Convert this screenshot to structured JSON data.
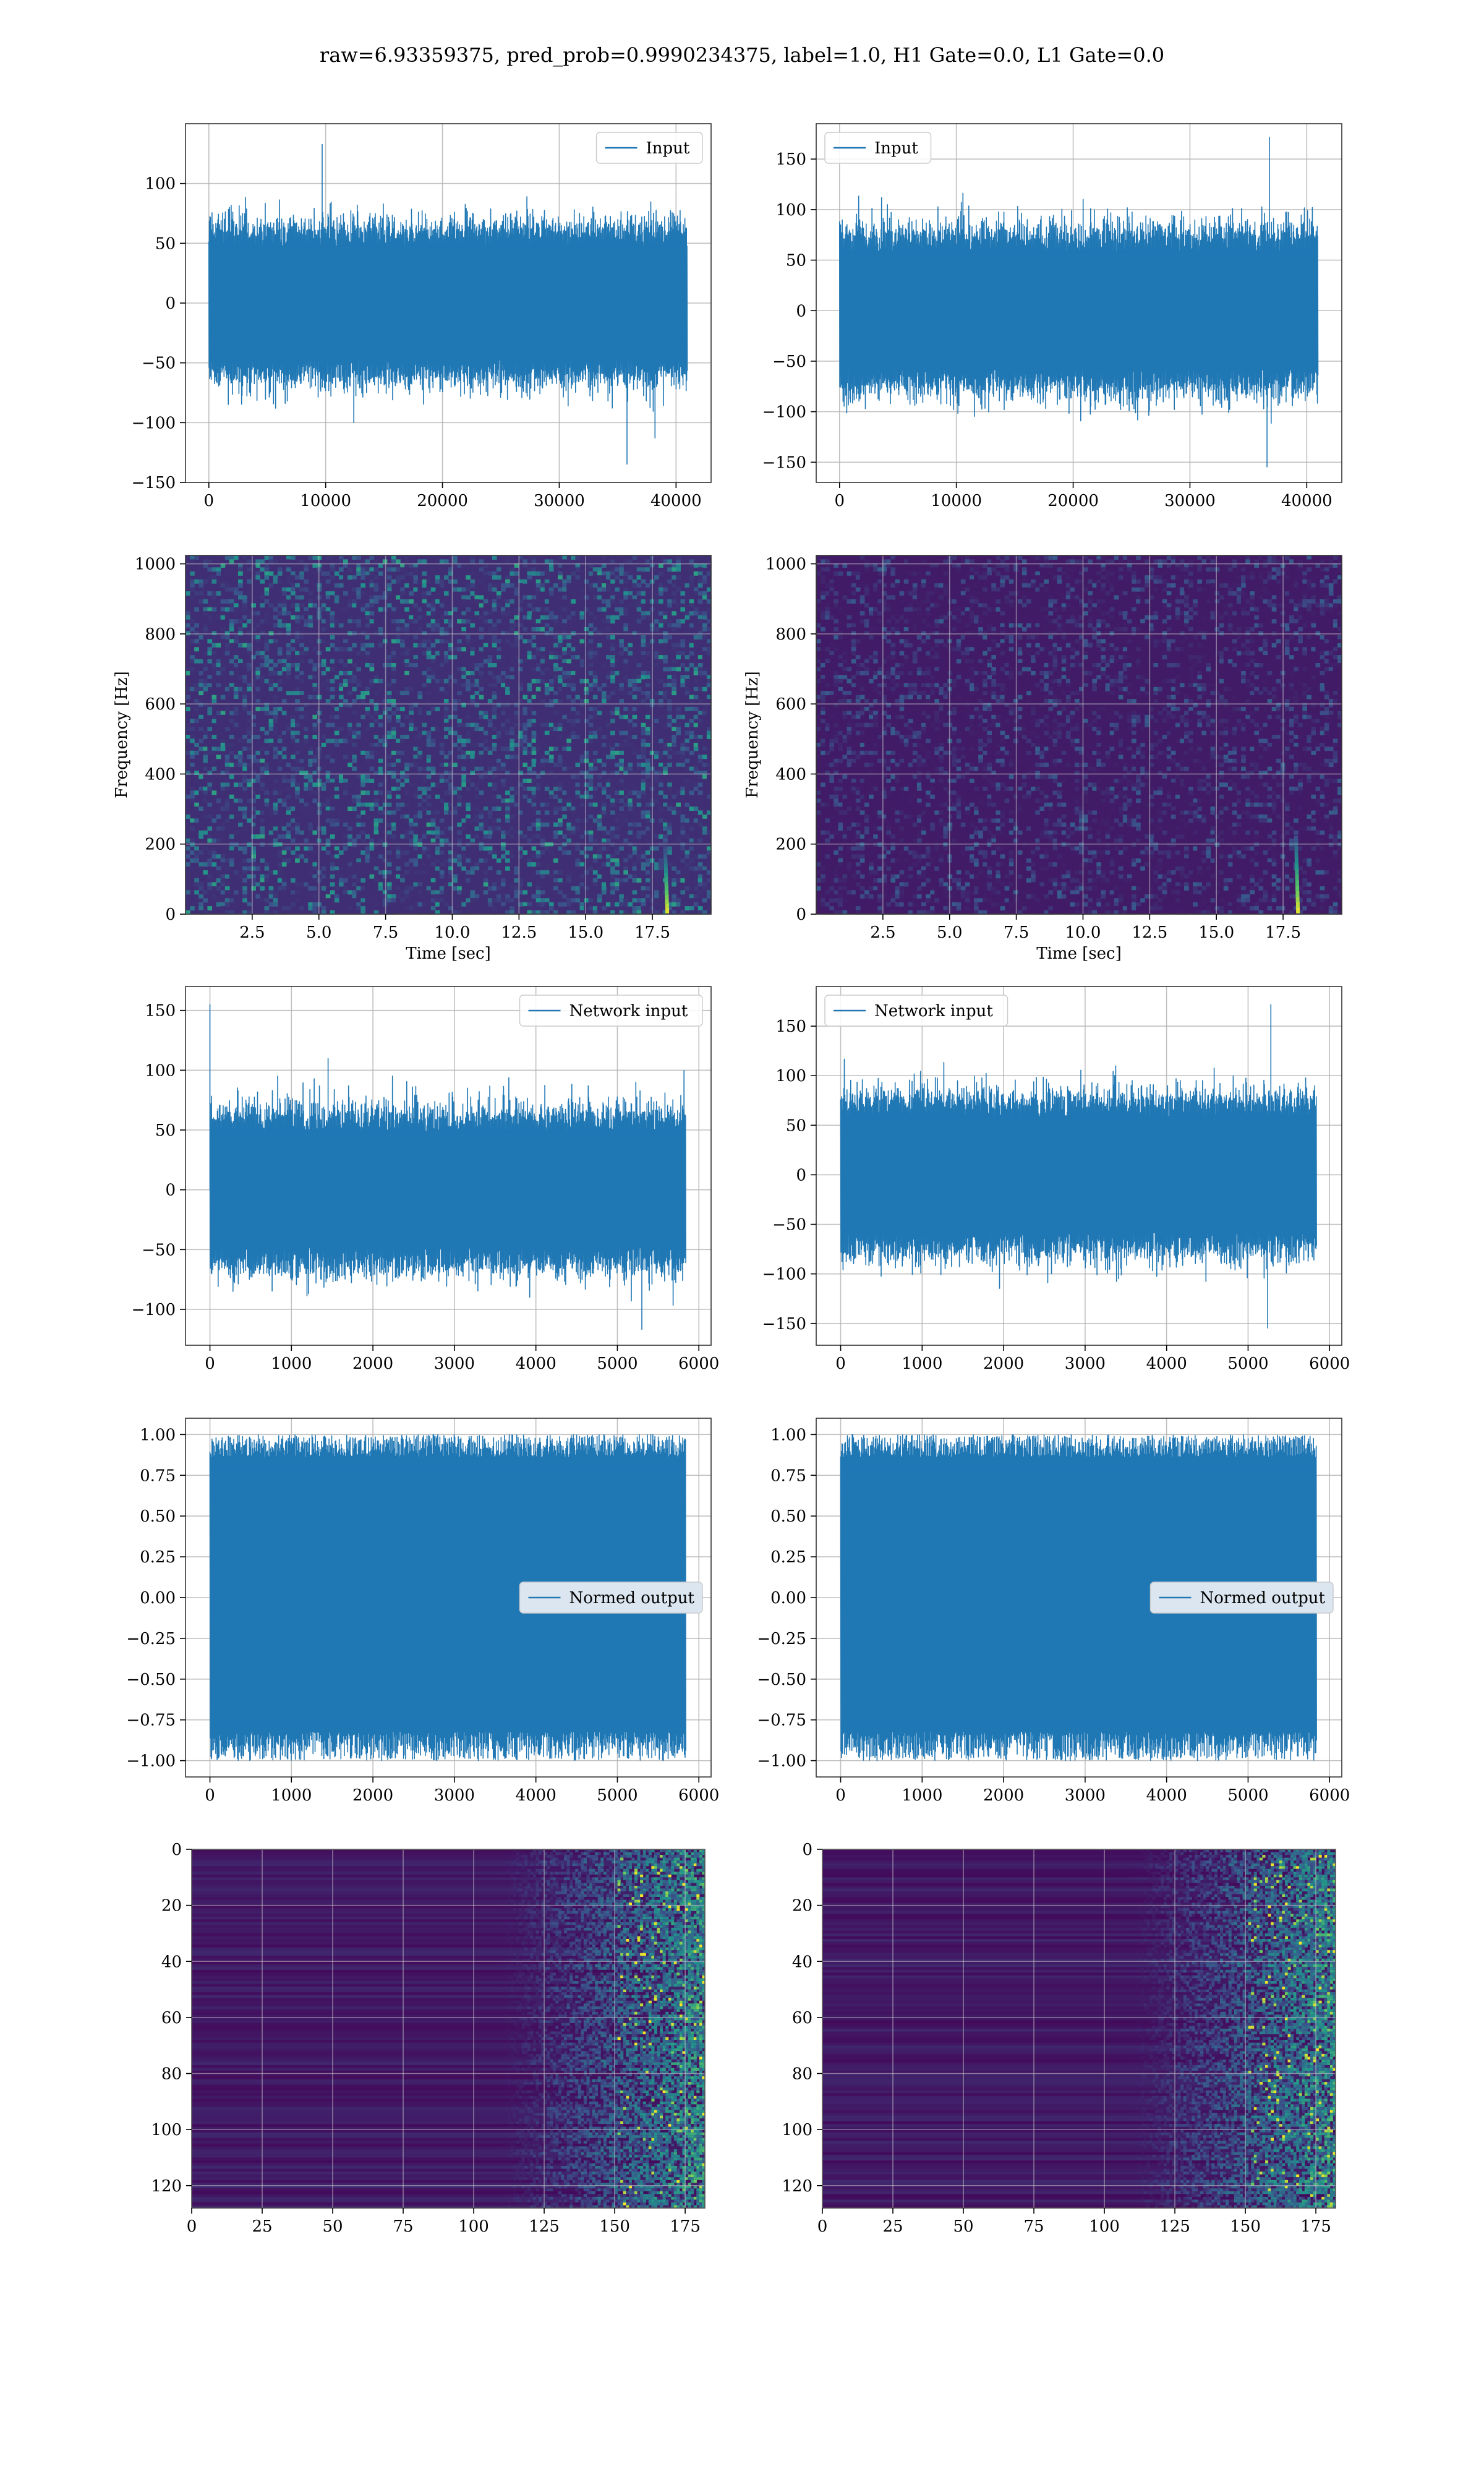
{
  "title": "raw=6.93359375, pred_prob=0.9990234375, label=1.0, H1 Gate=0.0, L1 Gate=0.0",
  "colors": {
    "line": "#1f77b4",
    "grid": "#b0b0b0",
    "heat_low": "#440154",
    "heat_high": "#fde725"
  },
  "chart_data": [
    {
      "type": "line",
      "panel": "row1-left",
      "series": [
        {
          "name": "Input",
          "n_points": 40960,
          "approx_range": [
            -135,
            133
          ],
          "spikes": [
            [
              9700,
              133
            ],
            [
              35800,
              -135
            ],
            [
              38200,
              -113
            ]
          ]
        }
      ],
      "xlim": [
        -2000,
        43000
      ],
      "ylim": [
        -150,
        150
      ],
      "xticks": [
        0,
        10000,
        20000,
        30000,
        40000
      ],
      "yticks": [
        -150,
        -100,
        -50,
        0,
        50,
        100
      ],
      "xlabel": "",
      "ylabel": "",
      "legend": "top-right",
      "grid": true
    },
    {
      "type": "line",
      "panel": "row1-right",
      "series": [
        {
          "name": "Input",
          "n_points": 40960,
          "approx_range": [
            -155,
            172
          ],
          "spikes": [
            [
              36800,
              172
            ],
            [
              36600,
              -155
            ]
          ]
        }
      ],
      "xlim": [
        -2000,
        43000
      ],
      "ylim": [
        -170,
        185
      ],
      "xticks": [
        0,
        10000,
        20000,
        30000,
        40000
      ],
      "yticks": [
        -150,
        -100,
        -50,
        0,
        50,
        100,
        150
      ],
      "xlabel": "",
      "ylabel": "",
      "legend": "top-left",
      "grid": true
    },
    {
      "type": "heatmap",
      "panel": "row2-left",
      "xlim": [
        0,
        19.7
      ],
      "ylim": [
        0,
        1024
      ],
      "xticks": [
        2.5,
        5.0,
        7.5,
        10.0,
        12.5,
        15.0,
        17.5
      ],
      "yticks": [
        0,
        200,
        400,
        600,
        800,
        1000
      ],
      "xlabel": "Time [sec]",
      "ylabel": "Frequency [Hz]",
      "grid": true,
      "features": [
        {
          "time": 18.0,
          "freq_range": [
            20,
            200
          ],
          "description": "chirp"
        }
      ]
    },
    {
      "type": "heatmap",
      "panel": "row2-right",
      "xlim": [
        0,
        19.7
      ],
      "ylim": [
        0,
        1024
      ],
      "xticks": [
        2.5,
        5.0,
        7.5,
        10.0,
        12.5,
        15.0,
        17.5
      ],
      "yticks": [
        0,
        200,
        400,
        600,
        800,
        1000
      ],
      "xlabel": "Time [sec]",
      "ylabel": "Frequency [Hz]",
      "grid": true,
      "features": [
        {
          "time": 18.0,
          "freq_range": [
            20,
            240
          ],
          "description": "chirp"
        }
      ]
    },
    {
      "type": "line",
      "panel": "row3-left",
      "series": [
        {
          "name": "Network input",
          "n_points": 5840,
          "approx_range": [
            -117,
            155
          ],
          "spikes": [
            [
              0,
              155
            ],
            [
              1450,
              110
            ],
            [
              5300,
              -117
            ]
          ]
        }
      ],
      "xlim": [
        -300,
        6150
      ],
      "ylim": [
        -130,
        170
      ],
      "xticks": [
        0,
        1000,
        2000,
        3000,
        4000,
        5000,
        6000
      ],
      "yticks": [
        -100,
        -50,
        0,
        50,
        100,
        150
      ],
      "xlabel": "",
      "ylabel": "",
      "legend": "top-right",
      "grid": true
    },
    {
      "type": "line",
      "panel": "row3-right",
      "series": [
        {
          "name": "Network input",
          "n_points": 5840,
          "approx_range": [
            -155,
            172
          ],
          "spikes": [
            [
              5280,
              172
            ],
            [
              5240,
              -155
            ],
            [
              1950,
              -115
            ]
          ]
        }
      ],
      "xlim": [
        -300,
        6150
      ],
      "ylim": [
        -172,
        190
      ],
      "xticks": [
        0,
        1000,
        2000,
        3000,
        4000,
        5000,
        6000
      ],
      "yticks": [
        -150,
        -100,
        -50,
        0,
        50,
        100,
        150
      ],
      "xlabel": "",
      "ylabel": "",
      "legend": "top-left",
      "grid": true
    },
    {
      "type": "line",
      "panel": "row4-left",
      "series": [
        {
          "name": "Normed output",
          "n_points": 5840,
          "approx_range": [
            -1.0,
            1.0
          ]
        }
      ],
      "xlim": [
        -300,
        6150
      ],
      "ylim": [
        -1.1,
        1.1
      ],
      "xticks": [
        0,
        1000,
        2000,
        3000,
        4000,
        5000,
        6000
      ],
      "yticks": [
        -1.0,
        -0.75,
        -0.5,
        -0.25,
        0.0,
        0.25,
        0.5,
        0.75,
        1.0
      ],
      "xlabel": "",
      "ylabel": "",
      "legend": "center-right",
      "grid": true
    },
    {
      "type": "line",
      "panel": "row4-right",
      "series": [
        {
          "name": "Normed output",
          "n_points": 5840,
          "approx_range": [
            -1.0,
            1.0
          ]
        }
      ],
      "xlim": [
        -300,
        6150
      ],
      "ylim": [
        -1.1,
        1.1
      ],
      "xticks": [
        0,
        1000,
        2000,
        3000,
        4000,
        5000,
        6000
      ],
      "yticks": [
        -1.0,
        -0.75,
        -0.5,
        -0.25,
        0.0,
        0.25,
        0.5,
        0.75,
        1.0
      ],
      "xlabel": "",
      "ylabel": "",
      "legend": "center-right",
      "grid": true
    },
    {
      "type": "heatmap",
      "panel": "row5-left",
      "xlim": [
        0,
        182
      ],
      "ylim": [
        128,
        0
      ],
      "xticks": [
        0,
        25,
        50,
        75,
        100,
        125,
        150,
        175
      ],
      "yticks": [
        0,
        20,
        40,
        60,
        80,
        100,
        120
      ],
      "xlabel": "",
      "ylabel": "",
      "grid": true,
      "features": [
        {
          "x_range": [
            140,
            182
          ],
          "description": "bright activations"
        }
      ]
    },
    {
      "type": "heatmap",
      "panel": "row5-right",
      "xlim": [
        0,
        182
      ],
      "ylim": [
        128,
        0
      ],
      "xticks": [
        0,
        25,
        50,
        75,
        100,
        125,
        150,
        175
      ],
      "yticks": [
        0,
        20,
        40,
        60,
        80,
        100,
        120
      ],
      "xlabel": "",
      "ylabel": "",
      "grid": true,
      "features": [
        {
          "x_range": [
            140,
            182
          ],
          "description": "bright activations"
        }
      ]
    }
  ]
}
